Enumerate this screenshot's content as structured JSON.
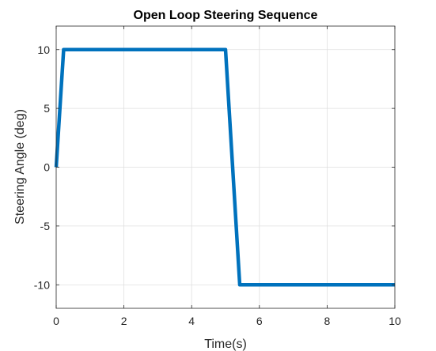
{
  "chart_data": {
    "type": "line",
    "title": "Open Loop Steering Sequence",
    "xlabel": "Time(s)",
    "ylabel": "Steering Angle (deg)",
    "xlim": [
      0,
      10
    ],
    "ylim": [
      -12,
      12
    ],
    "xticks": [
      0,
      2,
      4,
      6,
      8,
      10
    ],
    "yticks": [
      -10,
      -5,
      0,
      5,
      10
    ],
    "xtick_labels": [
      "0",
      "2",
      "4",
      "6",
      "8",
      "10"
    ],
    "ytick_labels": [
      "-10",
      "-5",
      "0",
      "5",
      "10"
    ],
    "grid": true,
    "legend": "none",
    "series": [
      {
        "color": "#0072BD",
        "x": [
          0,
          0.22,
          5.0,
          5.42,
          10
        ],
        "y": [
          0,
          10,
          10,
          -10,
          -10
        ]
      }
    ]
  }
}
